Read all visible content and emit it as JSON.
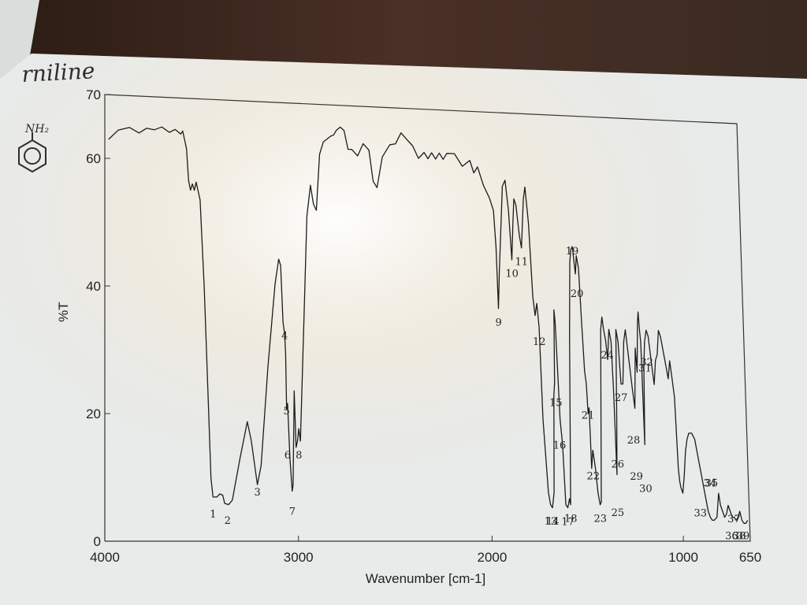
{
  "handwritten": {
    "compound_name": "rniline",
    "formula_label": "NH₂"
  },
  "chart_data": {
    "type": "line",
    "ylabel": "%T",
    "xlabel": "Wavenumber [cm-1]",
    "ylim": [
      0,
      70
    ],
    "xlim": [
      4000,
      650
    ],
    "x_reversed": true,
    "y_ticks": [
      "0",
      "20",
      "40",
      "60",
      "70"
    ],
    "x_ticks": [
      "4000",
      "3000",
      "2000",
      "1000",
      "650"
    ],
    "grid": false,
    "colors": {
      "line": "#1c1c1c",
      "paper": "#eef0ef"
    },
    "series": [
      {
        "points": [
          [
            3980,
            63
          ],
          [
            3930,
            64.5
          ],
          [
            3870,
            65
          ],
          [
            3820,
            64.2
          ],
          [
            3780,
            65
          ],
          [
            3740,
            64.8
          ],
          [
            3700,
            65.3
          ],
          [
            3660,
            64.5
          ],
          [
            3630,
            65
          ],
          [
            3600,
            64.3
          ],
          [
            3590,
            64.8
          ],
          [
            3570,
            62
          ],
          [
            3560,
            57
          ],
          [
            3550,
            55.5
          ],
          [
            3540,
            56.5
          ],
          [
            3530,
            55.5
          ],
          [
            3520,
            56.8
          ],
          [
            3500,
            54
          ],
          [
            3480,
            40
          ],
          [
            3460,
            20
          ],
          [
            3450,
            10
          ],
          [
            3440,
            7
          ],
          [
            3420,
            7
          ],
          [
            3405,
            7.5
          ],
          [
            3390,
            7.3
          ],
          [
            3380,
            6
          ],
          [
            3360,
            5.8
          ],
          [
            3340,
            6.5
          ],
          [
            3300,
            13
          ],
          [
            3260,
            19
          ],
          [
            3240,
            16
          ],
          [
            3210,
            9
          ],
          [
            3190,
            12
          ],
          [
            3150,
            28
          ],
          [
            3110,
            41
          ],
          [
            3090,
            45
          ],
          [
            3080,
            44
          ],
          [
            3070,
            35
          ],
          [
            3062,
            33
          ],
          [
            3058,
            30
          ],
          [
            3055,
            21
          ],
          [
            3050,
            22
          ],
          [
            3040,
            13
          ],
          [
            3030,
            8
          ],
          [
            3025,
            9
          ],
          [
            3015,
            24
          ],
          [
            3008,
            15
          ],
          [
            3000,
            16
          ],
          [
            2993,
            18
          ],
          [
            2985,
            16
          ],
          [
            2960,
            36
          ],
          [
            2940,
            52
          ],
          [
            2920,
            57
          ],
          [
            2905,
            54
          ],
          [
            2890,
            53
          ],
          [
            2870,
            62
          ],
          [
            2850,
            64
          ],
          [
            2830,
            64.5
          ],
          [
            2810,
            65
          ],
          [
            2795,
            65.2
          ],
          [
            2780,
            66
          ],
          [
            2760,
            66.5
          ],
          [
            2740,
            66
          ],
          [
            2720,
            63
          ],
          [
            2700,
            63
          ],
          [
            2670,
            62
          ],
          [
            2640,
            64
          ],
          [
            2610,
            63
          ],
          [
            2590,
            58
          ],
          [
            2570,
            57
          ],
          [
            2540,
            62
          ],
          [
            2500,
            64
          ],
          [
            2470,
            64.2
          ],
          [
            2440,
            66
          ],
          [
            2410,
            65
          ],
          [
            2380,
            64
          ],
          [
            2350,
            62
          ],
          [
            2320,
            63
          ],
          [
            2300,
            62
          ],
          [
            2280,
            63
          ],
          [
            2260,
            62
          ],
          [
            2240,
            63
          ],
          [
            2220,
            62
          ],
          [
            2200,
            63
          ],
          [
            2160,
            63
          ],
          [
            2120,
            61
          ],
          [
            2080,
            62
          ],
          [
            2060,
            60
          ],
          [
            2040,
            61
          ],
          [
            2010,
            58
          ],
          [
            1980,
            56
          ],
          [
            1960,
            54
          ],
          [
            1950,
            48
          ],
          [
            1943,
            38
          ],
          [
            1935,
            44
          ],
          [
            1910,
            58
          ],
          [
            1895,
            59
          ],
          [
            1880,
            54
          ],
          [
            1867,
            46
          ],
          [
            1858,
            52
          ],
          [
            1850,
            56
          ],
          [
            1840,
            55
          ],
          [
            1825,
            50
          ],
          [
            1815,
            48
          ],
          [
            1800,
            56
          ],
          [
            1790,
            58
          ],
          [
            1775,
            52
          ],
          [
            1760,
            40
          ],
          [
            1750,
            37
          ],
          [
            1740,
            39
          ],
          [
            1730,
            35
          ],
          [
            1720,
            20
          ],
          [
            1700,
            8
          ],
          [
            1690,
            6
          ],
          [
            1680,
            5.5
          ],
          [
            1670,
            8
          ],
          [
            1660,
            24
          ],
          [
            1655,
            26
          ],
          [
            1650,
            38
          ],
          [
            1645,
            36
          ],
          [
            1630,
            20
          ],
          [
            1620,
            16
          ],
          [
            1610,
            6
          ],
          [
            1600,
            5.5
          ],
          [
            1590,
            7
          ],
          [
            1585,
            6
          ],
          [
            1570,
            34
          ],
          [
            1560,
            46
          ],
          [
            1553,
            48
          ],
          [
            1545,
            48.5
          ],
          [
            1538,
            46
          ],
          [
            1532,
            44
          ],
          [
            1525,
            47
          ],
          [
            1515,
            45
          ],
          [
            1505,
            36
          ],
          [
            1495,
            28
          ],
          [
            1488,
            26
          ],
          [
            1482,
            21
          ],
          [
            1476,
            22
          ],
          [
            1470,
            12
          ],
          [
            1462,
            15
          ],
          [
            1450,
            12
          ],
          [
            1440,
            8
          ],
          [
            1430,
            6
          ],
          [
            1424,
            6.5
          ],
          [
            1415,
            20
          ],
          [
            1405,
            35
          ],
          [
            1397,
            37
          ],
          [
            1390,
            35
          ],
          [
            1380,
            33
          ],
          [
            1372,
            30
          ],
          [
            1362,
            35
          ],
          [
            1352,
            33
          ],
          [
            1345,
            25
          ],
          [
            1338,
            11
          ],
          [
            1332,
            20
          ],
          [
            1325,
            35
          ],
          [
            1315,
            33
          ],
          [
            1305,
            26
          ],
          [
            1295,
            26
          ],
          [
            1285,
            33
          ],
          [
            1275,
            35
          ],
          [
            1260,
            30
          ],
          [
            1245,
            25
          ],
          [
            1235,
            22
          ],
          [
            1225,
            32
          ],
          [
            1218,
            28
          ],
          [
            1210,
            36
          ],
          [
            1205,
            38
          ],
          [
            1200,
            35
          ],
          [
            1195,
            33
          ],
          [
            1188,
            16
          ],
          [
            1182,
            29
          ],
          [
            1175,
            33
          ],
          [
            1165,
            35
          ],
          [
            1155,
            34
          ],
          [
            1140,
            29
          ],
          [
            1130,
            26
          ],
          [
            1120,
            30
          ],
          [
            1110,
            31
          ],
          [
            1100,
            35
          ],
          [
            1090,
            34
          ],
          [
            1075,
            31
          ],
          [
            1065,
            29
          ],
          [
            1055,
            27
          ],
          [
            1045,
            30
          ],
          [
            1035,
            27
          ],
          [
            1025,
            24
          ],
          [
            1020,
            18
          ],
          [
            1015,
            12
          ],
          [
            1010,
            10
          ],
          [
            1005,
            9
          ],
          [
            995,
            8
          ],
          [
            985,
            11
          ],
          [
            975,
            15
          ],
          [
            965,
            17
          ],
          [
            955,
            18
          ],
          [
            940,
            18
          ],
          [
            925,
            17
          ],
          [
            915,
            15
          ],
          [
            905,
            13
          ],
          [
            895,
            11
          ],
          [
            885,
            9
          ],
          [
            875,
            7
          ],
          [
            865,
            5
          ],
          [
            855,
            4
          ],
          [
            845,
            3.5
          ],
          [
            835,
            3.5
          ],
          [
            820,
            4
          ],
          [
            808,
            8
          ],
          [
            800,
            6
          ],
          [
            790,
            5
          ],
          [
            780,
            4
          ],
          [
            770,
            4.5
          ],
          [
            760,
            6
          ],
          [
            750,
            5
          ],
          [
            740,
            4
          ],
          [
            730,
            4
          ],
          [
            720,
            3.5
          ],
          [
            710,
            4
          ],
          [
            700,
            5
          ],
          [
            690,
            3.5
          ],
          [
            680,
            3
          ],
          [
            670,
            3
          ],
          [
            660,
            3.5
          ]
        ]
      }
    ],
    "peak_labels": [
      {
        "label": "1",
        "x": 3440,
        "y": 5.5
      },
      {
        "label": "2",
        "x": 3365,
        "y": 4.5
      },
      {
        "label": "3",
        "x": 3210,
        "y": 9
      },
      {
        "label": "4",
        "x": 3062,
        "y": 34
      },
      {
        "label": "5",
        "x": 3055,
        "y": 22
      },
      {
        "label": "6",
        "x": 3052,
        "y": 15
      },
      {
        "label": "7",
        "x": 3030,
        "y": 6
      },
      {
        "label": "8",
        "x": 2993,
        "y": 15
      },
      {
        "label": "9",
        "x": 1943,
        "y": 37
      },
      {
        "label": "10",
        "x": 1867,
        "y": 45
      },
      {
        "label": "11",
        "x": 1815,
        "y": 47
      },
      {
        "label": "12",
        "x": 1730,
        "y": 34
      },
      {
        "label": "13",
        "x": 1690,
        "y": 4.5
      },
      {
        "label": "14",
        "x": 1680,
        "y": 4.5
      },
      {
        "label": "15",
        "x": 1650,
        "y": 24
      },
      {
        "label": "16",
        "x": 1635,
        "y": 17
      },
      {
        "label": "17",
        "x": 1600,
        "y": 4.5
      },
      {
        "label": "18",
        "x": 1585,
        "y": 5
      },
      {
        "label": "19",
        "x": 1545,
        "y": 49
      },
      {
        "label": "20",
        "x": 1525,
        "y": 42
      },
      {
        "label": "21",
        "x": 1482,
        "y": 22
      },
      {
        "label": "22",
        "x": 1462,
        "y": 12
      },
      {
        "label": "23",
        "x": 1430,
        "y": 5
      },
      {
        "label": "24",
        "x": 1372,
        "y": 32
      },
      {
        "label": "25",
        "x": 1338,
        "y": 6
      },
      {
        "label": "26",
        "x": 1332,
        "y": 14
      },
      {
        "label": "27",
        "x": 1305,
        "y": 25
      },
      {
        "label": "28",
        "x": 1245,
        "y": 18
      },
      {
        "label": "29",
        "x": 1235,
        "y": 12
      },
      {
        "label": "30",
        "x": 1188,
        "y": 10
      },
      {
        "label": "31",
        "x": 1175,
        "y": 30
      },
      {
        "label": "32",
        "x": 1165,
        "y": 31
      },
      {
        "label": "33",
        "x": 905,
        "y": 6
      },
      {
        "label": "34",
        "x": 850,
        "y": 11
      },
      {
        "label": "35",
        "x": 842,
        "y": 11
      },
      {
        "label": "36",
        "x": 745,
        "y": 2.2
      },
      {
        "label": "37",
        "x": 730,
        "y": 5
      },
      {
        "label": "38",
        "x": 705,
        "y": 2.2
      },
      {
        "label": "39",
        "x": 685,
        "y": 2.2
      }
    ]
  }
}
